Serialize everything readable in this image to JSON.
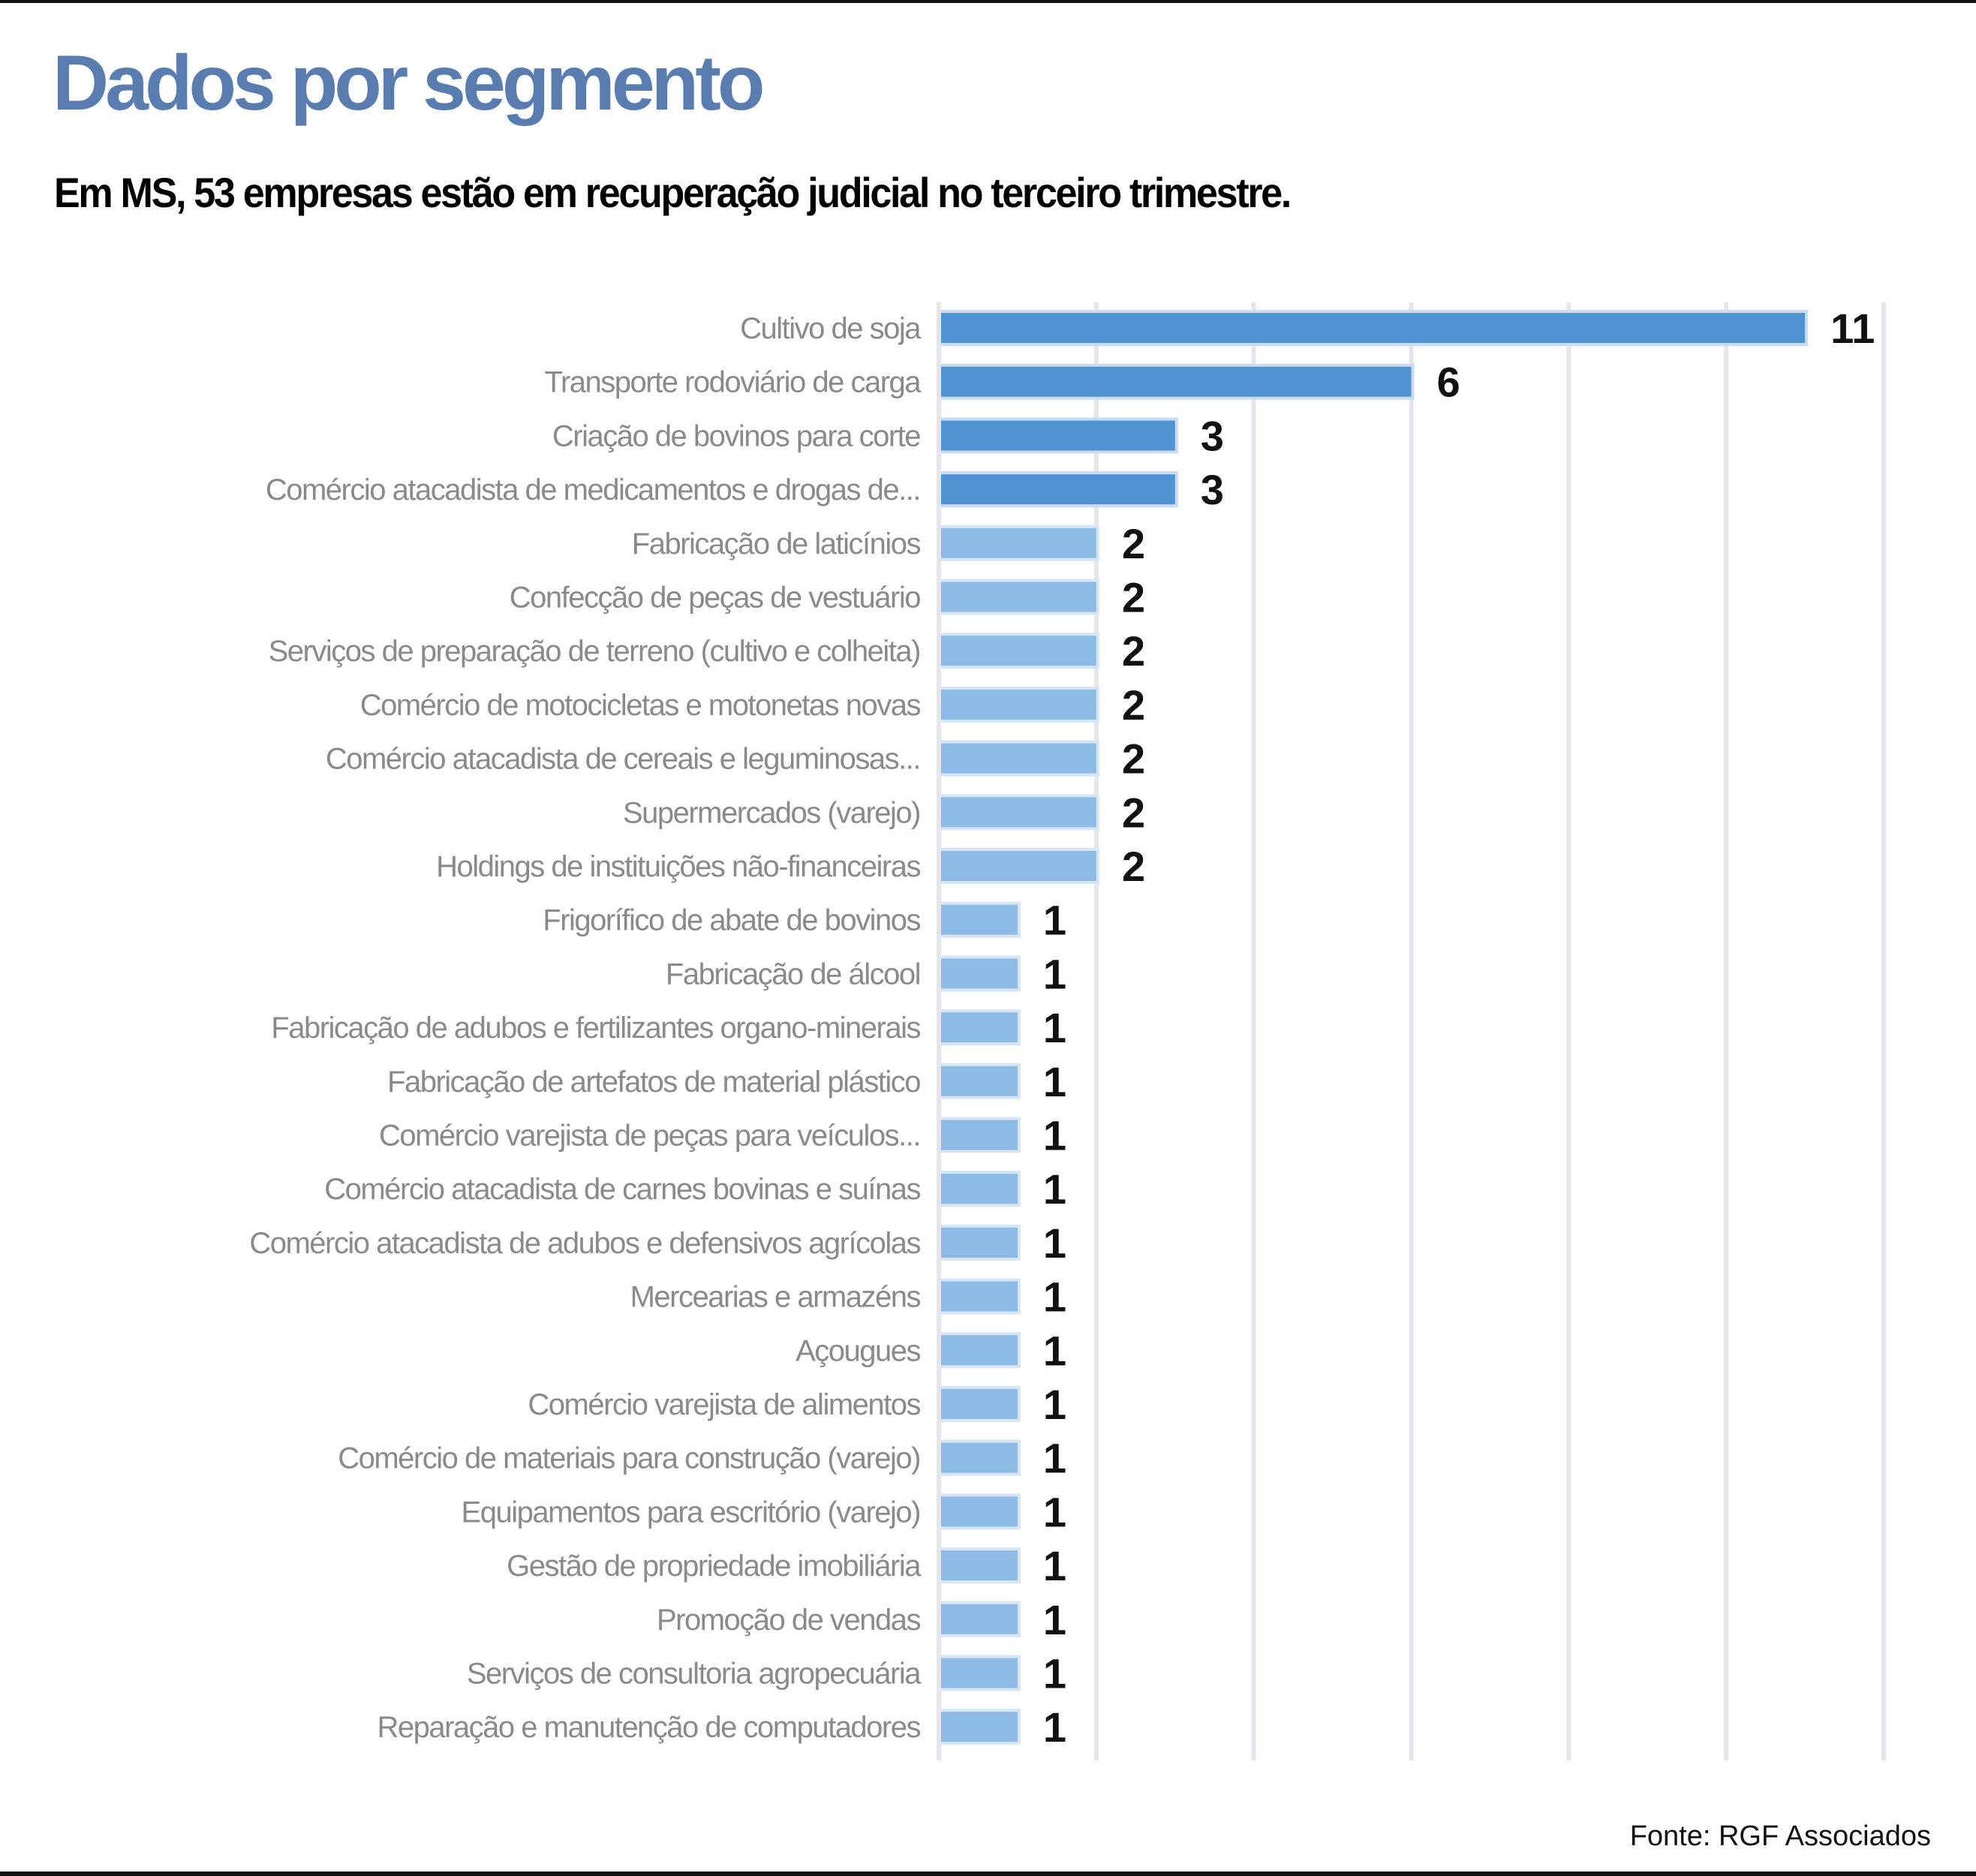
{
  "header": {
    "title": "Dados por segmento",
    "subtitle": "Em MS, 53 empresas estão em recuperação judicial no terceiro trimestre."
  },
  "footer": {
    "source": "Fonte: RGF Associados"
  },
  "colors": {
    "title": "#5a7db0",
    "bar_dark": "#4f93d2",
    "bar_light": "#8dbbe5",
    "grid": "#e4e6ea"
  },
  "chart_data": {
    "type": "bar",
    "orientation": "horizontal",
    "title": "Dados por segmento",
    "xlim": [
      0,
      12
    ],
    "grid": true,
    "categories": [
      "Cultivo de soja",
      "Transporte rodoviário de carga",
      "Criação de bovinos para corte",
      "Comércio atacadista de medicamentos e drogas de...",
      "Fabricação de laticínios",
      "Confecção de peças de vestuário",
      "Serviços de preparação de terreno (cultivo e colheita)",
      "Comércio de motocicletas e motonetas novas",
      "Comércio atacadista de cereais e leguminosas...",
      "Supermercados (varejo)",
      "Holdings de instituições não-financeiras",
      "Frigorífico de abate de bovinos",
      "Fabricação de álcool",
      "Fabricação de adubos e fertilizantes organo-minerais",
      "Fabricação de artefatos de material plástico",
      "Comércio varejista de peças para veículos...",
      "Comércio atacadista de carnes bovinas e suínas",
      "Comércio atacadista de adubos e defensivos agrícolas",
      "Mercearias e armazéns",
      "Açougues",
      "Comércio varejista de alimentos",
      "Comércio de materiais para construção (varejo)",
      "Equipamentos para escritório (varejo)",
      "Gestão de propriedade imobiliária",
      "Promoção de vendas",
      "Serviços de consultoria agropecuária",
      "Reparação e manutenção de computadores"
    ],
    "values": [
      11,
      6,
      3,
      3,
      2,
      2,
      2,
      2,
      2,
      2,
      2,
      1,
      1,
      1,
      1,
      1,
      1,
      1,
      1,
      1,
      1,
      1,
      1,
      1,
      1,
      1,
      1
    ]
  }
}
